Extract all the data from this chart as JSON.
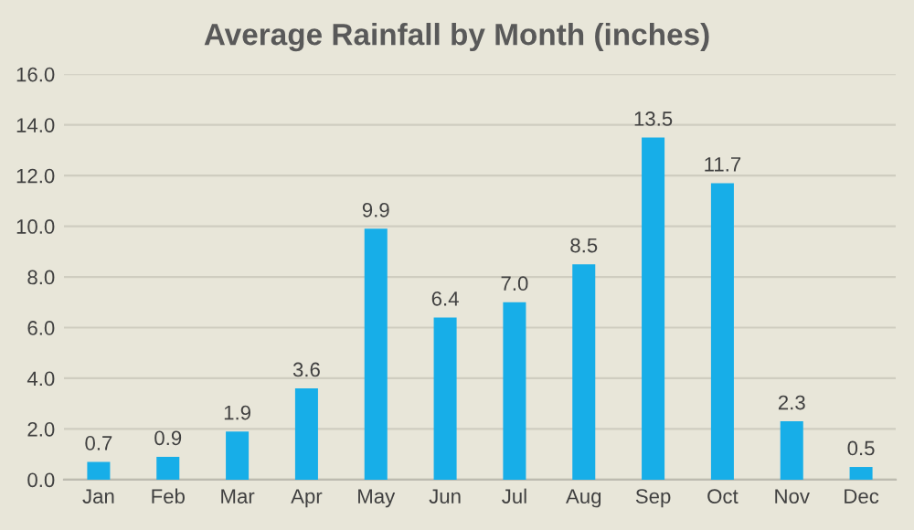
{
  "chart_data": {
    "type": "bar",
    "title": "Average Rainfall by Month (inches)",
    "categories": [
      "Jan",
      "Feb",
      "Mar",
      "Apr",
      "May",
      "Jun",
      "Jul",
      "Aug",
      "Sep",
      "Oct",
      "Nov",
      "Dec"
    ],
    "values": [
      0.7,
      0.9,
      1.9,
      3.6,
      9.9,
      6.4,
      7.0,
      8.5,
      13.5,
      11.7,
      2.3,
      0.5
    ],
    "color": "#17aee8",
    "ylim": [
      0,
      16
    ],
    "yticks": [
      {
        "value": 0,
        "label": "0.0"
      },
      {
        "value": 2,
        "label": "2.0"
      },
      {
        "value": 4,
        "label": "4.0"
      },
      {
        "value": 6,
        "label": "6.0"
      },
      {
        "value": 8,
        "label": "8.0"
      },
      {
        "value": 10,
        "label": "10.0"
      },
      {
        "value": 12,
        "label": "12.0"
      },
      {
        "value": 14,
        "label": "14.0"
      },
      {
        "value": 16,
        "label": "16.0"
      }
    ],
    "value_labels": [
      "0.7",
      "0.9",
      "1.9",
      "3.6",
      "9.9",
      "6.4",
      "7.0",
      "8.5",
      "13.5",
      "11.7",
      "2.3",
      "0.5"
    ],
    "grid": "y"
  }
}
